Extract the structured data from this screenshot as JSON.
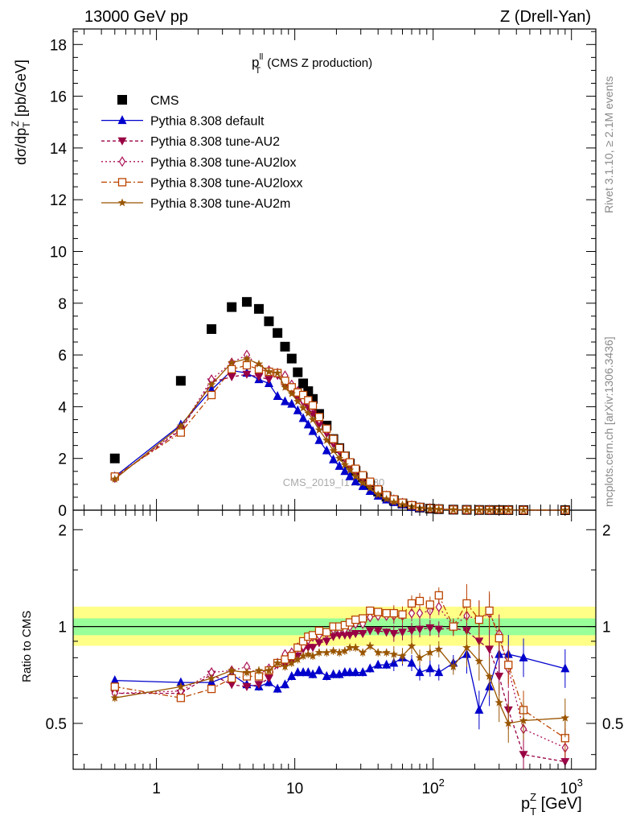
{
  "header": {
    "left": "13000 GeV pp",
    "right": "Z (Drell-Yan)"
  },
  "side_text": {
    "rivet": "Rivet 3.1.10, ≥ 2.1M events",
    "mcplots": "mcplots.cern.ch [arXiv:1306.3436]"
  },
  "watermark": "CMS_2019_I1753680",
  "plot_title": {
    "main": "p",
    "sup": "ll",
    "sub": "T",
    "rest": " (CMS Z production)"
  },
  "ylabel_main": "dσ/dp",
  "ylabel_sup": "Z",
  "ylabel_sub": "T",
  "ylabel_unit": " [pb/GeV]",
  "ylabel_ratio": "Ratio to CMS",
  "xlabel_main": "p",
  "xlabel_sup": "Z",
  "xlabel_sub": "T",
  "xlabel_unit": " [GeV]",
  "colors": {
    "cms": "#000000",
    "default": "#0000cc",
    "au2": "#990044",
    "au2lox": "#aa1155",
    "au2loxx": "#bb4400",
    "au2m": "#995500",
    "band_outer": "#ffff88",
    "band_inner": "#99ff99"
  },
  "chart_data": {
    "type": "scatter",
    "x_scale": "log",
    "x_range": [
      0.25,
      1500
    ],
    "main_ylim": [
      0,
      18.6
    ],
    "ratio_ylim": [
      0.36,
      2.3
    ],
    "main_yticks": [
      "0",
      "2",
      "4",
      "6",
      "8",
      "10",
      "12",
      "14",
      "16",
      "18"
    ],
    "ratio_yticks": [
      "0.5",
      "1",
      "2"
    ],
    "x_tick_labels": [
      {
        "base": "1",
        "exp": ""
      },
      {
        "base": "10",
        "exp": ""
      },
      {
        "base": "10",
        "exp": "2"
      },
      {
        "base": "10",
        "exp": "3"
      }
    ],
    "x": [
      0.5,
      1.5,
      2.5,
      3.5,
      4.5,
      5.5,
      6.5,
      7.5,
      8.5,
      9.5,
      10.5,
      11.5,
      12.5,
      13.5,
      15,
      17,
      19,
      21,
      23,
      25,
      27.5,
      31,
      35,
      40,
      46,
      52,
      60,
      70,
      80,
      95,
      110,
      140,
      175,
      215,
      255,
      300,
      350,
      450,
      900
    ],
    "legend": [
      "CMS",
      "Pythia 8.308 default",
      "Pythia 8.308 tune-AU2",
      "Pythia 8.308 tune-AU2lox",
      "Pythia 8.308 tune-AU2loxx",
      "Pythia 8.308 tune-AU2m"
    ],
    "series": [
      {
        "name": "CMS",
        "key": "cms",
        "marker": "square",
        "values": [
          2.0,
          5.0,
          7.0,
          7.85,
          8.05,
          7.78,
          7.3,
          6.85,
          6.32,
          5.86,
          5.33,
          4.9,
          4.6,
          4.3,
          3.72,
          3.27,
          2.75,
          2.4,
          2.08,
          1.8,
          1.52,
          1.27,
          0.98,
          0.72,
          0.52,
          0.38,
          0.26,
          0.16,
          0.1,
          0.06,
          0.04,
          0.02,
          0.012,
          0.008,
          0.006,
          0.005,
          0.004,
          0.002,
          0.001
        ]
      },
      {
        "name": "Pythia 8.308 default",
        "key": "default",
        "marker": "triangle",
        "values": [
          1.3,
          3.3,
          4.65,
          5.4,
          5.3,
          5.05,
          4.9,
          4.4,
          4.2,
          4.1,
          3.85,
          3.55,
          3.3,
          3.05,
          2.7,
          2.3,
          1.95,
          1.7,
          1.5,
          1.3,
          1.1,
          0.92,
          0.73,
          0.55,
          0.4,
          0.3,
          0.21,
          0.12,
          0.07,
          0.05,
          0.03,
          0.01,
          0.007,
          0.005,
          0.003,
          0.002,
          0.002,
          0.001,
          0.0005
        ]
      },
      {
        "name": "Pythia 8.308 tune-AU2",
        "key": "au2",
        "marker": "inverted",
        "values": [
          1.25,
          3.1,
          4.95,
          5.15,
          5.25,
          5.15,
          5.05,
          5.2,
          4.8,
          4.6,
          4.3,
          4.15,
          3.95,
          3.7,
          3.3,
          2.95,
          2.55,
          2.25,
          1.95,
          1.7,
          1.45,
          1.2,
          0.95,
          0.7,
          0.5,
          0.36,
          0.25,
          0.16,
          0.1,
          0.06,
          0.04,
          0.02,
          0.011,
          0.006,
          0.005,
          0.004,
          0.003,
          0.002,
          0.001
        ]
      },
      {
        "name": "Pythia 8.308 tune-AU2lox",
        "key": "au2lox",
        "marker": "diamond",
        "values": [
          1.25,
          3.15,
          5.05,
          5.7,
          6.0,
          5.55,
          5.4,
          5.3,
          5.2,
          4.85,
          4.6,
          4.25,
          4.2,
          4.0,
          3.5,
          3.1,
          2.7,
          2.35,
          2.05,
          1.8,
          1.55,
          1.3,
          1.05,
          0.78,
          0.56,
          0.41,
          0.28,
          0.18,
          0.11,
          0.07,
          0.05,
          0.02,
          0.013,
          0.009,
          0.007,
          0.006,
          0.004,
          0.002,
          0.001
        ]
      },
      {
        "name": "Pythia 8.308 tune-AU2loxx",
        "key": "au2loxx",
        "marker": "opensquare",
        "values": [
          1.3,
          3.0,
          4.45,
          5.45,
          5.6,
          5.45,
          5.35,
          5.3,
          5.0,
          4.75,
          4.55,
          4.45,
          4.25,
          4.05,
          3.6,
          3.15,
          2.75,
          2.4,
          2.1,
          1.85,
          1.6,
          1.35,
          1.1,
          0.8,
          0.58,
          0.42,
          0.29,
          0.19,
          0.12,
          0.07,
          0.05,
          0.02,
          0.014,
          0.009,
          0.007,
          0.006,
          0.004,
          0.002,
          0.001
        ]
      },
      {
        "name": "Pythia 8.308 tune-AU2m",
        "key": "au2m",
        "marker": "star",
        "values": [
          1.2,
          3.25,
          4.85,
          5.7,
          5.85,
          5.65,
          5.35,
          5.3,
          4.75,
          4.5,
          4.2,
          3.95,
          3.75,
          3.5,
          3.1,
          2.7,
          2.3,
          2.0,
          1.75,
          1.55,
          1.3,
          1.05,
          0.85,
          0.6,
          0.43,
          0.31,
          0.21,
          0.14,
          0.08,
          0.05,
          0.03,
          0.015,
          0.01,
          0.007,
          0.005,
          0.004,
          0.003,
          0.002,
          0.001
        ]
      }
    ],
    "ratio_series": [
      {
        "key": "default",
        "marker": "triangle",
        "values": [
          0.68,
          0.67,
          0.67,
          0.71,
          0.66,
          0.65,
          0.67,
          0.64,
          0.66,
          0.7,
          0.72,
          0.72,
          0.72,
          0.71,
          0.73,
          0.7,
          0.71,
          0.71,
          0.72,
          0.72,
          0.72,
          0.72,
          0.74,
          0.76,
          0.76,
          0.77,
          0.8,
          0.77,
          0.72,
          0.74,
          0.72,
          0.77,
          0.82,
          0.55,
          0.65,
          0.82,
          0.82,
          0.8,
          0.74
        ]
      },
      {
        "key": "au2",
        "marker": "inverted",
        "values": [
          0.62,
          0.62,
          0.71,
          0.66,
          0.65,
          0.66,
          0.69,
          0.76,
          0.76,
          0.78,
          0.81,
          0.85,
          0.86,
          0.86,
          0.89,
          0.9,
          0.93,
          0.94,
          0.94,
          0.94,
          0.95,
          0.95,
          0.97,
          0.97,
          0.96,
          0.95,
          0.96,
          0.97,
          0.98,
          0.99,
          0.98,
          0.99,
          0.97,
          0.9,
          0.85,
          0.7,
          0.55,
          0.4,
          0.38
        ]
      },
      {
        "key": "au2lox",
        "marker": "diamond",
        "values": [
          0.62,
          0.63,
          0.72,
          0.73,
          0.75,
          0.71,
          0.74,
          0.77,
          0.82,
          0.83,
          0.86,
          0.87,
          0.91,
          0.93,
          0.94,
          0.95,
          0.98,
          0.98,
          0.98,
          1.0,
          1.02,
          1.02,
          1.07,
          1.08,
          1.08,
          1.08,
          1.08,
          1.1,
          1.1,
          1.12,
          1.15,
          1.0,
          1.08,
          1.05,
          1.1,
          0.95,
          0.74,
          0.48,
          0.42
        ]
      },
      {
        "key": "au2loxx",
        "marker": "opensquare",
        "values": [
          0.65,
          0.6,
          0.64,
          0.69,
          0.7,
          0.7,
          0.73,
          0.77,
          0.79,
          0.81,
          0.86,
          0.9,
          0.93,
          0.94,
          0.97,
          0.96,
          1.0,
          1.0,
          1.01,
          1.03,
          1.05,
          1.06,
          1.12,
          1.11,
          1.1,
          1.1,
          1.09,
          1.18,
          1.2,
          1.17,
          1.25,
          1.0,
          1.18,
          1.05,
          1.12,
          0.92,
          0.76,
          0.55,
          0.45
        ]
      },
      {
        "key": "au2m",
        "marker": "star",
        "values": [
          0.6,
          0.65,
          0.69,
          0.73,
          0.72,
          0.73,
          0.73,
          0.77,
          0.75,
          0.77,
          0.79,
          0.81,
          0.82,
          0.81,
          0.83,
          0.83,
          0.84,
          0.83,
          0.84,
          0.86,
          0.86,
          0.83,
          0.87,
          0.83,
          0.83,
          0.82,
          0.81,
          0.87,
          0.8,
          0.83,
          0.85,
          0.75,
          0.86,
          0.78,
          0.7,
          0.58,
          0.5,
          0.51,
          0.52
        ]
      }
    ],
    "cms_band_outer": [
      0.85,
      0.88
    ],
    "cms_band_inner": [
      0.94,
      1.06
    ]
  }
}
